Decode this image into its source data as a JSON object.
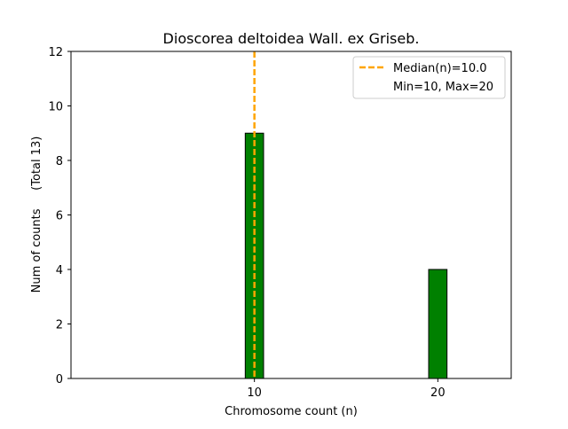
{
  "chart_data": {
    "type": "bar",
    "title": "Dioscorea deltoidea Wall. ex Griseb.",
    "xlabel": "Chromosome count (n)",
    "ylabel": "Num of counts     (Total 13)",
    "xlim": [
      0,
      24
    ],
    "ylim": [
      0,
      12
    ],
    "xticks": [
      10,
      20
    ],
    "yticks": [
      0,
      2,
      4,
      6,
      8,
      10,
      12
    ],
    "bar_width": 1,
    "bars": [
      {
        "x": 10,
        "value": 9
      },
      {
        "x": 20,
        "value": 4
      }
    ],
    "bar_color": "#008000",
    "bar_edge_color": "#000000",
    "median": {
      "value": 10.0,
      "label": "Median(n)=10.0",
      "color": "#ffa500"
    },
    "legend": {
      "placement": "top-right",
      "entries": [
        "Median(n)=10.0",
        "Min=10, Max=20"
      ]
    },
    "grid": false
  }
}
